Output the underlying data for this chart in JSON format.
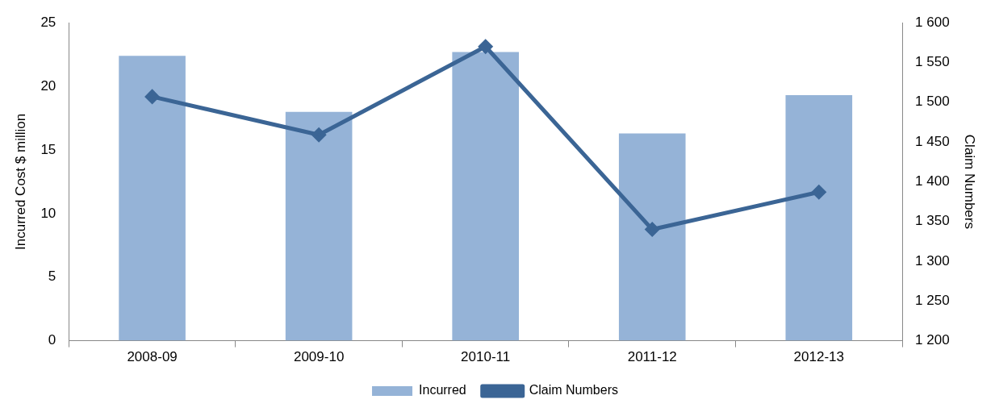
{
  "chart_data": {
    "type": "bar",
    "categories": [
      "2008-09",
      "2009-10",
      "2010-11",
      "2011-12",
      "2012-13"
    ],
    "ylabel": "Incurred Cost $ million",
    "y2label": "Claim Numbers",
    "series": [
      {
        "name": "Incurred",
        "color": "#95b3d7",
        "values": [
          22.4,
          18.0,
          22.7,
          16.3,
          19.3
        ]
      },
      {
        "name": "Claim Numbers",
        "type": "line",
        "axis": "y2",
        "color": "#3b6595",
        "marker": "diamond",
        "values": [
          1507,
          1459,
          1570,
          1340,
          1387
        ]
      }
    ],
    "ylim": [
      0,
      25
    ],
    "yticks": [
      0,
      5,
      10,
      15,
      20,
      25
    ],
    "y2lim": [
      1200,
      1600
    ],
    "y2ticks": [
      {
        "value": 1200,
        "label": "1 200"
      },
      {
        "value": 1250,
        "label": "1 250"
      },
      {
        "value": 1300,
        "label": "1 300"
      },
      {
        "value": 1350,
        "label": "1 350"
      },
      {
        "value": 1400,
        "label": "1 400"
      },
      {
        "value": 1450,
        "label": "1 450"
      },
      {
        "value": 1500,
        "label": "1 500"
      },
      {
        "value": 1550,
        "label": "1 550"
      },
      {
        "value": 1600,
        "label": "1 600"
      }
    ],
    "grid": false,
    "legend": "bottom"
  }
}
